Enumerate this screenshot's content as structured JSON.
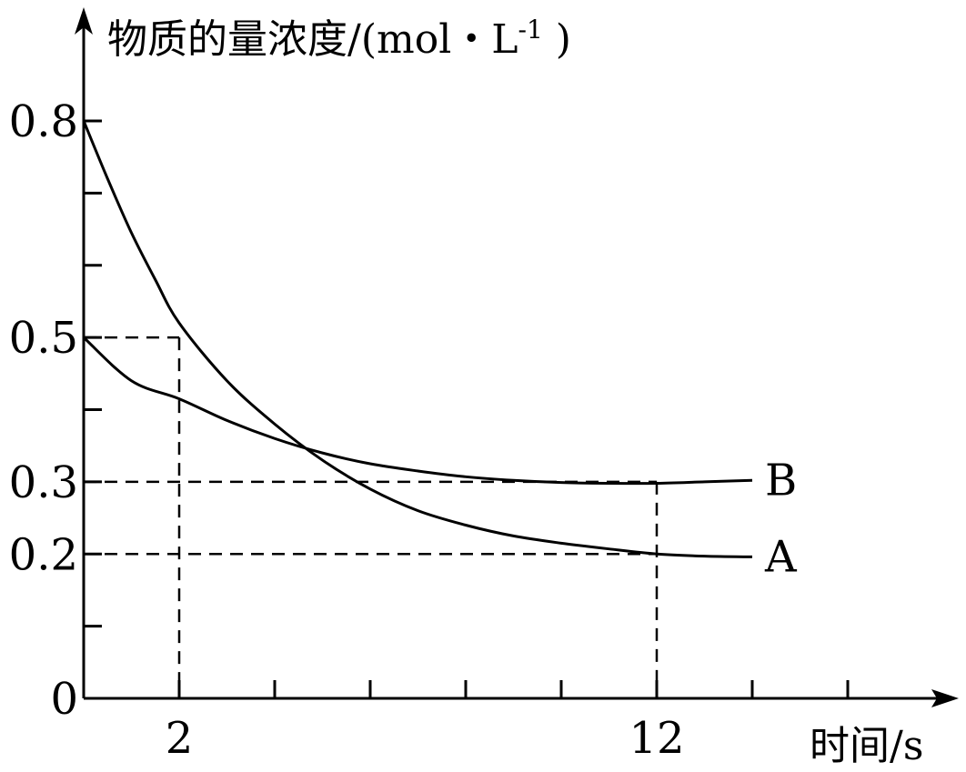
{
  "chart_data": {
    "type": "line",
    "ylabel": "物质的量浓度/(mol・L",
    "ylabel_sup": "-1",
    "ylabel_close": " )",
    "xlabel": "时间/s",
    "xlim": [
      0,
      16
    ],
    "ylim": [
      0,
      0.8
    ],
    "x_tick_labels": [
      {
        "value": 2,
        "label": "2"
      },
      {
        "value": 12,
        "label": "12"
      }
    ],
    "y_tick_labels": [
      {
        "value": 0.8,
        "label": "0.8"
      },
      {
        "value": 0.5,
        "label": "0.5"
      },
      {
        "value": 0.3,
        "label": "0.3"
      },
      {
        "value": 0.2,
        "label": "0.2"
      },
      {
        "value": 0,
        "label": "0"
      }
    ],
    "x_minor_ticks": [
      4,
      6,
      8,
      10,
      14,
      16
    ],
    "y_minor_ticks": [
      0.1,
      0.4,
      0.6,
      0.7
    ],
    "guides": [
      {
        "x": 2,
        "y": 0.5
      },
      {
        "x": 12,
        "y": 0.3
      },
      {
        "x": 12,
        "y": 0.2
      }
    ],
    "series": [
      {
        "name": "A",
        "x": [
          0,
          0.5,
          1,
          1.5,
          2,
          3,
          4,
          5,
          6,
          7,
          8,
          9,
          10,
          11,
          12,
          13,
          14
        ],
        "y": [
          0.8,
          0.72,
          0.645,
          0.58,
          0.52,
          0.44,
          0.38,
          0.33,
          0.29,
          0.26,
          0.24,
          0.225,
          0.215,
          0.207,
          0.2,
          0.197,
          0.196
        ]
      },
      {
        "name": "B",
        "x": [
          0,
          1,
          2,
          3,
          4,
          5,
          6,
          7,
          8,
          9,
          10,
          11,
          12,
          13,
          14
        ],
        "y": [
          0.5,
          0.44,
          0.415,
          0.385,
          0.36,
          0.34,
          0.325,
          0.315,
          0.307,
          0.302,
          0.299,
          0.298,
          0.298,
          0.3,
          0.302
        ]
      }
    ]
  }
}
